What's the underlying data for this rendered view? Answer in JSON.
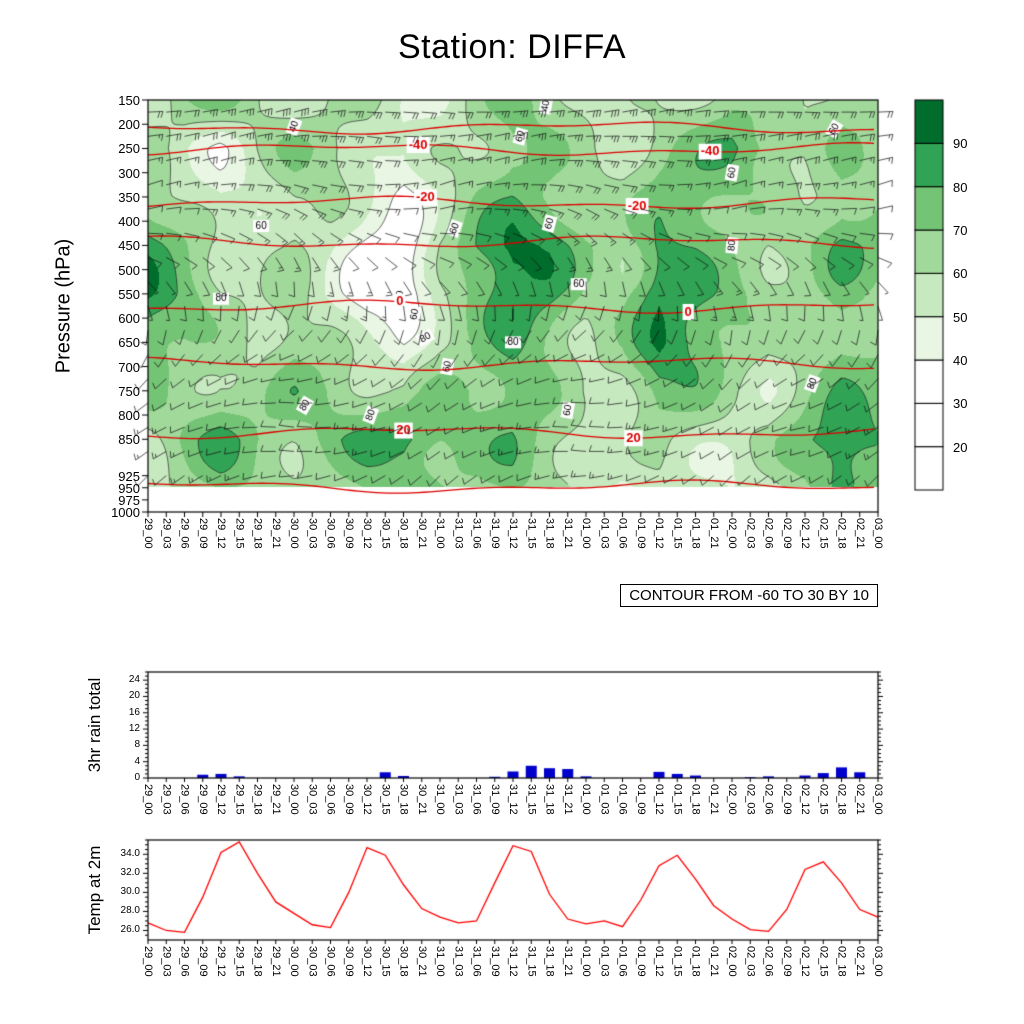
{
  "title": "Station: DIFFA",
  "time_labels": [
    "29_00",
    "29_03",
    "29_06",
    "29_09",
    "29_12",
    "29_15",
    "29_18",
    "29_21",
    "30_00",
    "30_03",
    "30_06",
    "30_09",
    "30_12",
    "30_15",
    "30_18",
    "30_21",
    "31_00",
    "31_03",
    "31_06",
    "31_09",
    "31_12",
    "31_15",
    "31_18",
    "31_21",
    "01_00",
    "01_03",
    "01_06",
    "01_09",
    "01_12",
    "01_15",
    "01_18",
    "01_21",
    "02_00",
    "02_03",
    "02_06",
    "02_09",
    "02_12",
    "02_15",
    "02_18",
    "02_21",
    "03_00"
  ],
  "chart_data": [
    {
      "type": "heatmap",
      "name": "relative-humidity-pressure-time-cross-section",
      "ylabel": "Pressure (hPa)",
      "xlabel": "",
      "pressure_ticks": [
        150,
        200,
        250,
        300,
        350,
        400,
        450,
        500,
        550,
        600,
        650,
        700,
        750,
        800,
        850,
        925,
        950,
        975,
        1000
      ],
      "pressure_range": [
        150,
        1000
      ],
      "field_bottom_pressure": 950,
      "x_categories_ref": "time_labels",
      "fill_boundaries": [
        20,
        30,
        40,
        50,
        60,
        70,
        80,
        90
      ],
      "fill_colors": [
        "#ffffff",
        "#ffffff",
        "#ffffff",
        "#e8f6e3",
        "#c7e9c0",
        "#a1d99b",
        "#74c476",
        "#31a354",
        "#006d2c"
      ],
      "line_contour_levels": [
        40,
        60,
        80
      ],
      "contour_note": "CONTOUR FROM -60 TO 30 BY 10",
      "colorbar_labels": [
        20,
        30,
        40,
        50,
        60,
        70,
        80,
        90
      ],
      "rh_grid": {
        "levels": [
          150,
          250,
          350,
          450,
          550,
          650,
          750,
          850,
          950
        ],
        "times": [
          "29_00",
          "29_06",
          "29_12",
          "29_18",
          "30_00",
          "30_06",
          "30_12",
          "30_18",
          "31_00",
          "31_06",
          "31_12",
          "31_18",
          "01_00",
          "01_06",
          "01_12",
          "01_18",
          "02_00",
          "02_06",
          "02_12",
          "02_18",
          "03_00"
        ],
        "values": [
          [
            55,
            65,
            70,
            60,
            55,
            60,
            65,
            55,
            50,
            60,
            70,
            65,
            60,
            55,
            60,
            65,
            70,
            60,
            55,
            65,
            60
          ],
          [
            60,
            55,
            45,
            60,
            70,
            65,
            55,
            45,
            55,
            65,
            75,
            70,
            60,
            55,
            65,
            70,
            80,
            75,
            65,
            70,
            65
          ],
          [
            70,
            60,
            50,
            55,
            65,
            60,
            45,
            35,
            55,
            70,
            80,
            75,
            65,
            60,
            70,
            75,
            70,
            65,
            60,
            75,
            70
          ],
          [
            85,
            70,
            55,
            50,
            60,
            55,
            40,
            30,
            60,
            80,
            92,
            85,
            70,
            65,
            85,
            80,
            70,
            60,
            65,
            80,
            75
          ],
          [
            90,
            75,
            60,
            55,
            65,
            50,
            35,
            30,
            55,
            75,
            88,
            80,
            65,
            70,
            92,
            85,
            75,
            65,
            60,
            70,
            65
          ],
          [
            80,
            70,
            65,
            60,
            70,
            60,
            45,
            40,
            60,
            70,
            85,
            75,
            60,
            65,
            88,
            80,
            70,
            60,
            65,
            75,
            70
          ],
          [
            70,
            65,
            70,
            65,
            75,
            70,
            60,
            55,
            70,
            75,
            80,
            70,
            55,
            60,
            75,
            70,
            60,
            55,
            70,
            80,
            75
          ],
          [
            60,
            70,
            80,
            70,
            65,
            75,
            85,
            90,
            75,
            70,
            75,
            65,
            60,
            55,
            65,
            60,
            55,
            60,
            75,
            90,
            80
          ],
          [
            55,
            60,
            70,
            65,
            60,
            65,
            75,
            80,
            70,
            65,
            70,
            60,
            55,
            50,
            60,
            55,
            50,
            55,
            65,
            80,
            70
          ]
        ]
      },
      "temp_contours": [
        {
          "value": -50,
          "pressure": 207,
          "label": "",
          "label_x": []
        },
        {
          "value": -40,
          "pressure": 252,
          "label": "-40",
          "label_x": [
            0.37,
            0.77
          ]
        },
        {
          "value": -20,
          "pressure": 362,
          "label": "-20",
          "label_x": [
            0.38,
            0.67
          ]
        },
        {
          "value": -10,
          "pressure": 443,
          "label": "",
          "label_x": []
        },
        {
          "value": 0,
          "pressure": 576,
          "label": "0",
          "label_x": [
            0.345,
            0.74
          ]
        },
        {
          "value": 10,
          "pressure": 694,
          "label": "",
          "label_x": []
        },
        {
          "value": 20,
          "pressure": 836,
          "label": "20",
          "label_x": [
            0.35,
            0.665
          ]
        },
        {
          "value": 30,
          "pressure": 948,
          "label": "",
          "label_x": []
        }
      ],
      "temp_contour_color": "#dd0000",
      "contour_line_labels": [
        {
          "t": "40",
          "fx": 0.2,
          "p": 205,
          "r": -70
        },
        {
          "t": "60",
          "fx": 0.51,
          "p": 225,
          "r": -75
        },
        {
          "t": "40",
          "fx": 0.545,
          "p": 162,
          "r": -80
        },
        {
          "t": "60",
          "fx": 0.8,
          "p": 300,
          "r": -80
        },
        {
          "t": "60",
          "fx": 0.155,
          "p": 410,
          "r": 0
        },
        {
          "t": "60",
          "fx": 0.42,
          "p": 415,
          "r": -70
        },
        {
          "t": "60",
          "fx": 0.55,
          "p": 405,
          "r": -75
        },
        {
          "t": "80",
          "fx": 0.1,
          "p": 560,
          "r": 0
        },
        {
          "t": "40",
          "fx": 0.345,
          "p": 555,
          "r": -85
        },
        {
          "t": "60",
          "fx": 0.365,
          "p": 592,
          "r": -80
        },
        {
          "t": "60",
          "fx": 0.59,
          "p": 530,
          "r": 0
        },
        {
          "t": "80",
          "fx": 0.8,
          "p": 450,
          "r": -85
        },
        {
          "t": "80",
          "fx": 0.38,
          "p": 640,
          "r": -30
        },
        {
          "t": "80",
          "fx": 0.5,
          "p": 650,
          "r": 0
        },
        {
          "t": "60",
          "fx": 0.41,
          "p": 700,
          "r": -80
        },
        {
          "t": "80",
          "fx": 0.215,
          "p": 780,
          "r": -60
        },
        {
          "t": "80",
          "fx": 0.305,
          "p": 800,
          "r": -70
        },
        {
          "t": "60",
          "fx": 0.575,
          "p": 790,
          "r": -80
        },
        {
          "t": "80",
          "fx": 0.91,
          "p": 735,
          "r": -70
        },
        {
          "t": "60",
          "fx": 0.94,
          "p": 210,
          "r": -60
        }
      ],
      "wind_barbs": {
        "times": [
          "29_00",
          "29_12",
          "30_00",
          "30_12",
          "31_00",
          "31_12",
          "01_00",
          "01_12",
          "02_00",
          "02_12",
          "03_00"
        ],
        "levels": [
          150,
          250,
          350,
          450,
          550,
          650,
          750,
          850,
          950
        ],
        "speed_kt": [
          [
            20,
            25,
            30,
            25,
            20,
            25,
            30,
            25,
            20,
            25,
            20
          ],
          [
            15,
            20,
            25,
            20,
            15,
            20,
            25,
            20,
            15,
            20,
            15
          ],
          [
            10,
            15,
            20,
            15,
            10,
            15,
            20,
            15,
            10,
            15,
            10
          ],
          [
            10,
            10,
            15,
            10,
            10,
            10,
            15,
            10,
            10,
            10,
            10
          ],
          [
            5,
            10,
            10,
            15,
            10,
            5,
            10,
            10,
            15,
            10,
            5
          ],
          [
            10,
            5,
            10,
            10,
            5,
            10,
            10,
            5,
            10,
            10,
            10
          ],
          [
            10,
            10,
            5,
            10,
            10,
            10,
            5,
            10,
            10,
            5,
            10
          ],
          [
            15,
            10,
            10,
            15,
            10,
            15,
            10,
            15,
            10,
            10,
            15
          ],
          [
            10,
            15,
            10,
            5,
            10,
            10,
            15,
            10,
            5,
            10,
            10
          ]
        ],
        "dir_deg": [
          [
            90,
            80,
            70,
            90,
            100,
            90,
            80,
            70,
            90,
            100,
            90
          ],
          [
            80,
            70,
            90,
            100,
            80,
            70,
            90,
            100,
            80,
            70,
            80
          ],
          [
            70,
            90,
            110,
            90,
            70,
            90,
            110,
            90,
            70,
            90,
            70
          ],
          [
            100,
            120,
            140,
            120,
            100,
            120,
            140,
            120,
            100,
            120,
            100
          ],
          [
            150,
            170,
            190,
            170,
            150,
            170,
            190,
            170,
            150,
            170,
            150
          ],
          [
            200,
            220,
            240,
            220,
            200,
            220,
            240,
            220,
            200,
            220,
            200
          ],
          [
            230,
            250,
            270,
            250,
            230,
            250,
            270,
            250,
            230,
            250,
            230
          ],
          [
            240,
            260,
            280,
            260,
            240,
            260,
            280,
            260,
            240,
            260,
            240
          ],
          [
            220,
            240,
            260,
            240,
            220,
            240,
            260,
            240,
            220,
            240,
            220
          ]
        ]
      }
    },
    {
      "type": "bar",
      "name": "3hr-rain-total",
      "ylabel": "3hr rain total",
      "categories_same_as": "time_labels",
      "y_ticks": [
        0,
        4,
        8,
        12,
        16,
        20,
        24
      ],
      "ylim": [
        0,
        26
      ],
      "bar_color": "#0000cc",
      "values": [
        0,
        0,
        0,
        0.8,
        1.0,
        0.4,
        0,
        0,
        0,
        0,
        0,
        0,
        0,
        1.4,
        0.5,
        0,
        0,
        0,
        0,
        0.3,
        1.6,
        3.0,
        2.4,
        2.2,
        0.4,
        0,
        0,
        0,
        1.5,
        1.0,
        0.6,
        0,
        0,
        0.2,
        0.4,
        0,
        0.6,
        1.2,
        2.6,
        1.4,
        0
      ]
    },
    {
      "type": "line",
      "name": "temp-at-2m",
      "ylabel": "Temp at 2m",
      "categories_same_as": "time_labels",
      "y_ticks": [
        26,
        28,
        30,
        32,
        34
      ],
      "y_tick_labels": [
        "26.0",
        "28.0",
        "30.0",
        "32.0",
        "34.0"
      ],
      "ylim": [
        25,
        35.5
      ],
      "line_color": "#ff0000",
      "values": [
        26.8,
        26.0,
        25.8,
        29.5,
        34.2,
        35.3,
        32.0,
        29.0,
        27.8,
        26.6,
        26.3,
        30.0,
        34.7,
        33.9,
        30.8,
        28.3,
        27.4,
        26.8,
        27.0,
        31.0,
        34.9,
        34.3,
        29.8,
        27.2,
        26.7,
        27.0,
        26.4,
        29.2,
        32.8,
        33.9,
        31.4,
        28.6,
        27.2,
        26.1,
        25.9,
        28.2,
        32.4,
        33.2,
        31.0,
        28.2,
        27.4
      ]
    }
  ]
}
